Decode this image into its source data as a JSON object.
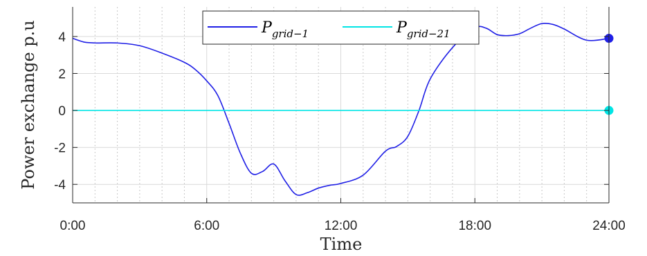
{
  "chart_data": {
    "type": "line",
    "xlabel": "Time",
    "ylabel": "Power exchange p.u",
    "xlim": [
      0,
      24
    ],
    "ylim": [
      -5,
      5.6
    ],
    "x_ticks": [
      0,
      6,
      12,
      18,
      24
    ],
    "x_tick_labels": [
      "0:00",
      "6:00",
      "12:00",
      "18:00",
      "24:00"
    ],
    "y_ticks": [
      -4,
      -2,
      0,
      2,
      4
    ],
    "y_tick_labels": [
      "-4",
      "-2",
      "0",
      "2",
      "4"
    ],
    "minor_x_step": 1,
    "grid": true,
    "legend_position": "top-center",
    "series": [
      {
        "name": "P_grid-1",
        "legend_main": "P",
        "legend_sub": "grid−1",
        "color": "#1f1fe6",
        "x": [
          0,
          0.5,
          1,
          2,
          3,
          4,
          5,
          5.5,
          6,
          6.5,
          7,
          7.5,
          8,
          8.5,
          9,
          9.5,
          10,
          10.5,
          11,
          11.5,
          12,
          13,
          14,
          14.5,
          15,
          15.5,
          16,
          17,
          18,
          18.5,
          19,
          19.5,
          20,
          20.5,
          21,
          21.5,
          22,
          23,
          24
        ],
        "y": [
          3.9,
          3.7,
          3.65,
          3.65,
          3.5,
          3.1,
          2.6,
          2.2,
          1.6,
          0.8,
          -0.7,
          -2.3,
          -3.4,
          -3.3,
          -2.9,
          -3.8,
          -4.55,
          -4.45,
          -4.2,
          -4.05,
          -3.95,
          -3.5,
          -2.2,
          -1.95,
          -1.4,
          0,
          1.7,
          3.4,
          4.45,
          4.45,
          4.1,
          4.05,
          4.15,
          4.45,
          4.7,
          4.65,
          4.4,
          3.8,
          3.9
        ],
        "end_marker": true
      },
      {
        "name": "P_grid-21",
        "legend_main": "P",
        "legend_sub": "grid−21",
        "color": "#00e5e5",
        "x": [
          0,
          24
        ],
        "y": [
          0,
          0
        ],
        "end_marker": true
      }
    ]
  }
}
